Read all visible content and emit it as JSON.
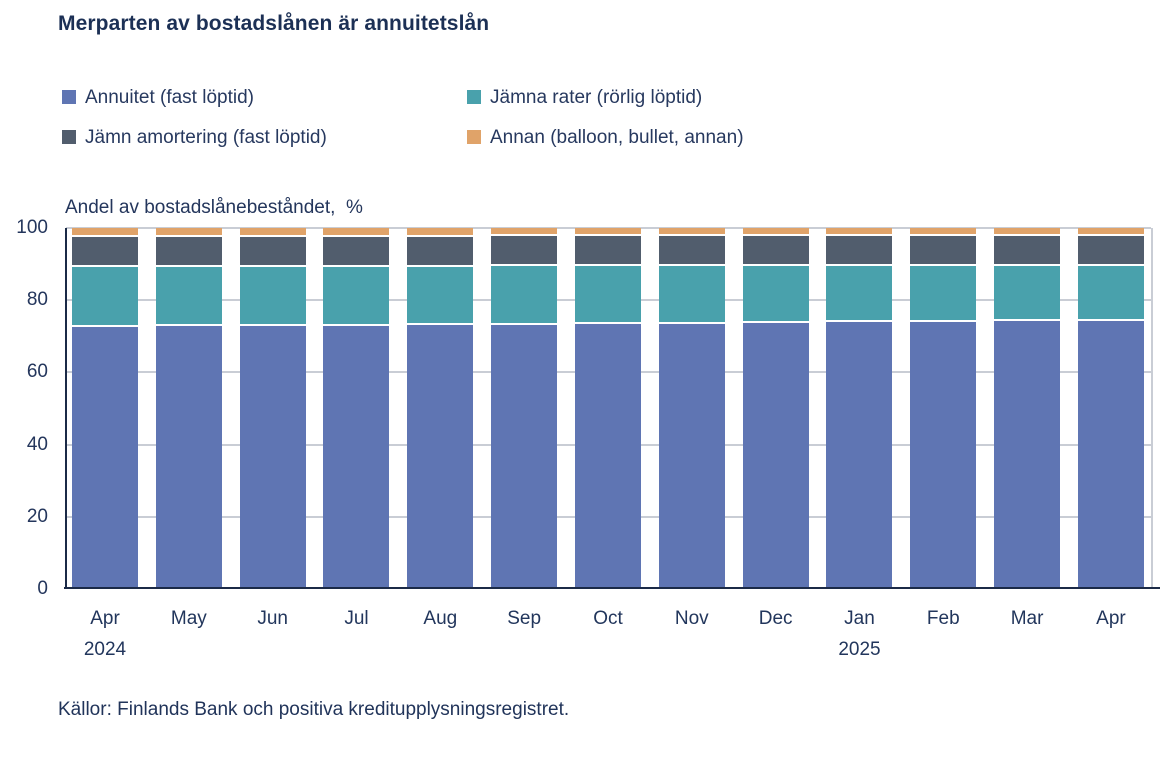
{
  "title": "Merparten av bostadslånen är annuitetslån",
  "legend": {
    "items": [
      {
        "label": "Annuitet (fast löptid)",
        "color": "#5f75b3"
      },
      {
        "label": "Jämna rater (rörlig löptid)",
        "color": "#49a1ac"
      },
      {
        "label": "Jämn amortering (fast löptid)",
        "color": "#515d6d"
      },
      {
        "label": "Annan (balloon, bullet, annan)",
        "color": "#e0a369"
      }
    ]
  },
  "chart_data": {
    "type": "bar",
    "subtype": "stacked-100",
    "title": "Merparten av bostadslånen är annuitetslån",
    "ylabel": "Andel av bostadslånebeståndet,  %",
    "xlabel": "",
    "ylim": [
      0,
      100
    ],
    "yticks": [
      0,
      20,
      40,
      60,
      80,
      100
    ],
    "grid": "horizontal",
    "legend_position": "top",
    "categories": [
      "Apr",
      "May",
      "Jun",
      "Jul",
      "Aug",
      "Sep",
      "Oct",
      "Nov",
      "Dec",
      "Jan",
      "Feb",
      "Mar",
      "Apr"
    ],
    "category_years": {
      "0": "2024",
      "9": "2025"
    },
    "series": [
      {
        "name": "Annuitet (fast löptid)",
        "color": "#5f75b3",
        "values": [
          73.2,
          73.3,
          73.4,
          73.5,
          73.6,
          73.8,
          73.9,
          74.0,
          74.2,
          74.4,
          74.5,
          74.7,
          74.9
        ]
      },
      {
        "name": "Jämna rater (rörlig löptid)",
        "color": "#49a1ac",
        "values": [
          16.6,
          16.5,
          16.4,
          16.3,
          16.2,
          16.1,
          16.0,
          15.9,
          15.7,
          15.5,
          15.4,
          15.3,
          15.1
        ]
      },
      {
        "name": "Jämn amortering (fast löptid)",
        "color": "#515d6d",
        "values": [
          8.4,
          8.4,
          8.4,
          8.4,
          8.4,
          8.4,
          8.4,
          8.4,
          8.4,
          8.4,
          8.4,
          8.4,
          8.4
        ]
      },
      {
        "name": "Annan (balloon, bullet, annan)",
        "color": "#e0a369",
        "values": [
          1.8,
          1.8,
          1.8,
          1.8,
          1.8,
          1.7,
          1.7,
          1.7,
          1.7,
          1.7,
          1.7,
          1.6,
          1.6
        ]
      }
    ],
    "source": "Källor: Finlands Bank och positiva kreditupplysningsregistret."
  },
  "colors": {
    "title_text": "#1c3055",
    "axis_text": "#24365c",
    "axis_line": "#1b2a47",
    "gridline": "#c9cdd5"
  }
}
